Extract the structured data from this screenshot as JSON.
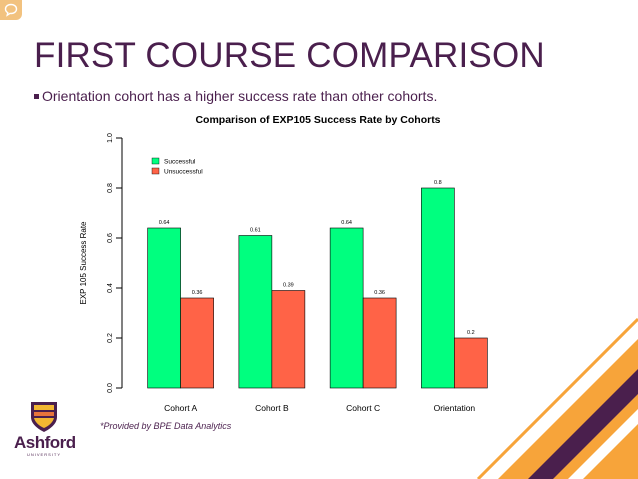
{
  "slide": {
    "title": "FIRST COURSE COMPARISON",
    "bullet": "Orientation cohort has a higher success rate than other cohorts.",
    "source_note": "*Provided by BPE Data Analytics"
  },
  "logo": {
    "name": "Ashford",
    "sub": "UNIVERSITY"
  },
  "colors": {
    "title": "#4a1f4d",
    "successful": "#00ff7f",
    "unsuccessful": "#ff6347",
    "accent_orange": "#f7a43a",
    "accent_purple": "#4a1f4d"
  },
  "chart_data": {
    "type": "bar",
    "title": "Comparison of EXP105 Success Rate by Cohorts",
    "xlabel": "",
    "ylabel": "EXP 105 Success Rate",
    "ylim": [
      0,
      1.0
    ],
    "yticks": [
      "0.0",
      "0.2",
      "0.4",
      "0.6",
      "0.8",
      "1.0"
    ],
    "categories": [
      "Cohort A",
      "Cohort B",
      "Cohort C",
      "Orientation"
    ],
    "series": [
      {
        "name": "Successful",
        "color": "#00ff7f",
        "values": [
          0.64,
          0.61,
          0.64,
          0.8
        ],
        "labels": [
          "0.64",
          "0.61",
          "0.64",
          "0.8"
        ]
      },
      {
        "name": "Unsuccessful",
        "color": "#ff6347",
        "values": [
          0.36,
          0.39,
          0.36,
          0.2
        ],
        "labels": [
          "0.36",
          "0.39",
          "0.36",
          "0.2"
        ]
      }
    ],
    "legend_position": "top-left",
    "grid": false
  }
}
